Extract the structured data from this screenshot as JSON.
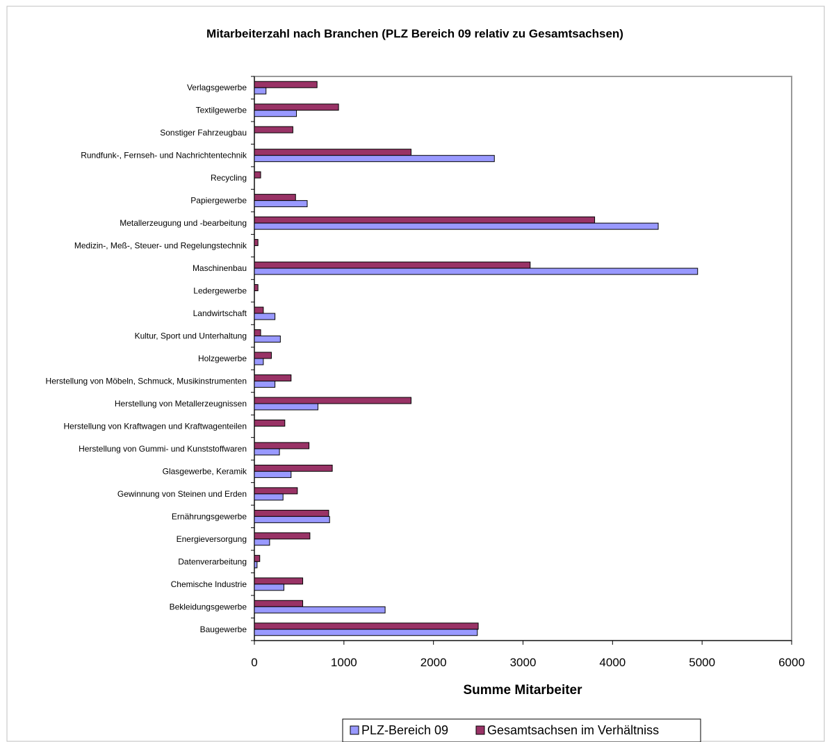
{
  "chart_data": {
    "type": "bar",
    "orientation": "horizontal",
    "title": "Mitarbeiterzahl nach Branchen (PLZ Bereich 09 relativ zu Gesamtsachsen)",
    "xlabel": "Summe Mitarbeiter",
    "ylabel": "",
    "xlim": [
      0,
      6000
    ],
    "xticks": [
      0,
      1000,
      2000,
      3000,
      4000,
      5000,
      6000
    ],
    "grid": false,
    "legend_position": "bottom",
    "categories": [
      "Verlagsgewerbe",
      "Textilgewerbe",
      "Sonstiger Fahrzeugbau",
      "Rundfunk-, Fernseh- und Nachrichtentechnik",
      "Recycling",
      "Papiergewerbe",
      "Metallerzeugung und -bearbeitung",
      "Medizin-, Meß-, Steuer- und Regelungstechnik",
      "Maschinenbau",
      "Ledergewerbe",
      "Landwirtschaft",
      "Kultur, Sport und Unterhaltung",
      "Holzgewerbe",
      "Herstellung von Möbeln, Schmuck, Musikinstrumenten",
      "Herstellung von Metallerzeugnissen",
      "Herstellung von Kraftwagen und Kraftwagenteilen",
      "Herstellung von Gummi- und Kunststoffwaren",
      "Glasgewerbe, Keramik",
      "Gewinnung von Steinen und Erden",
      "Ernährungsgewerbe",
      "Energieversorgung",
      "Datenverarbeitung",
      "Chemische Industrie",
      "Bekleidungsgewerbe",
      "Baugewerbe"
    ],
    "series": [
      {
        "name": "PLZ-Bereich 09",
        "color": "#9999ff",
        "values": [
          130,
          470,
          0,
          2680,
          0,
          590,
          4510,
          0,
          4950,
          0,
          230,
          290,
          100,
          230,
          710,
          0,
          280,
          410,
          320,
          840,
          170,
          30,
          330,
          1460,
          2490
        ]
      },
      {
        "name": "Gesamtsachsen im Verhältniss",
        "color": "#993366",
        "values": [
          700,
          940,
          430,
          1750,
          70,
          460,
          3800,
          40,
          3080,
          40,
          100,
          70,
          190,
          410,
          1750,
          340,
          610,
          870,
          480,
          830,
          620,
          60,
          540,
          540,
          2500
        ]
      }
    ]
  }
}
